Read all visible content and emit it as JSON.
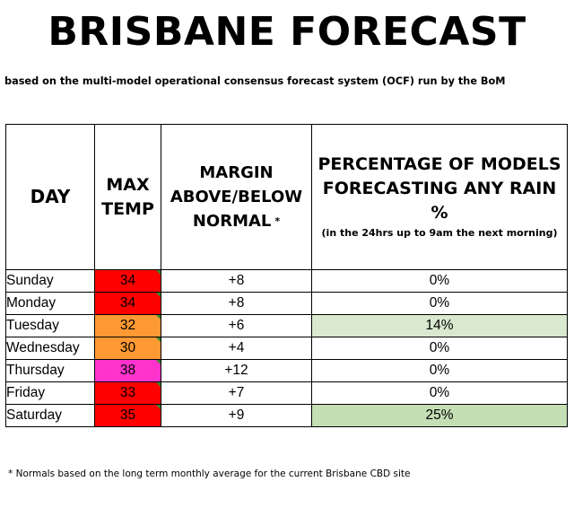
{
  "title": "BRISBANE FORECAST",
  "subtitle": "based on the multi-model operational consensus forecast system (OCF) run by the BoM",
  "table": {
    "headers": {
      "day": "DAY",
      "max_line1": "MAX",
      "max_line2": "TEMP",
      "margin_line1": "MARGIN",
      "margin_line2": "ABOVE/BELOW",
      "margin_line3": "NORMAL",
      "margin_asterisk": "*",
      "pct_line1": "PERCENTAGE OF MODELS",
      "pct_line2": "FORECASTING ANY RAIN %",
      "pct_note": "(in the 24hrs up to 9am the next morning)"
    },
    "rows": [
      {
        "day": "Sunday",
        "max": "34",
        "margin": "+8",
        "rain": "0%",
        "temp_color": "#ff0000",
        "rain_color": "#ffffff"
      },
      {
        "day": "Monday",
        "max": "34",
        "margin": "+8",
        "rain": "0%",
        "temp_color": "#ff0000",
        "rain_color": "#ffffff"
      },
      {
        "day": "Tuesday",
        "max": "32",
        "margin": "+6",
        "rain": "14%",
        "temp_color": "#ff9933",
        "rain_color": "#d8e9cf"
      },
      {
        "day": "Wednesday",
        "max": "30",
        "margin": "+4",
        "rain": "0%",
        "temp_color": "#ff9933",
        "rain_color": "#ffffff"
      },
      {
        "day": "Thursday",
        "max": "38",
        "margin": "+12",
        "rain": "0%",
        "temp_color": "#ff33cc",
        "rain_color": "#ffffff"
      },
      {
        "day": "Friday",
        "max": "33",
        "margin": "+7",
        "rain": "0%",
        "temp_color": "#ff0000",
        "rain_color": "#ffffff"
      },
      {
        "day": "Saturday",
        "max": "35",
        "margin": "+9",
        "rain": "25%",
        "temp_color": "#ff0000",
        "rain_color": "#c4dfb4"
      }
    ]
  },
  "footnote": "* Normals based on the long term monthly average for the current Brisbane CBD site"
}
